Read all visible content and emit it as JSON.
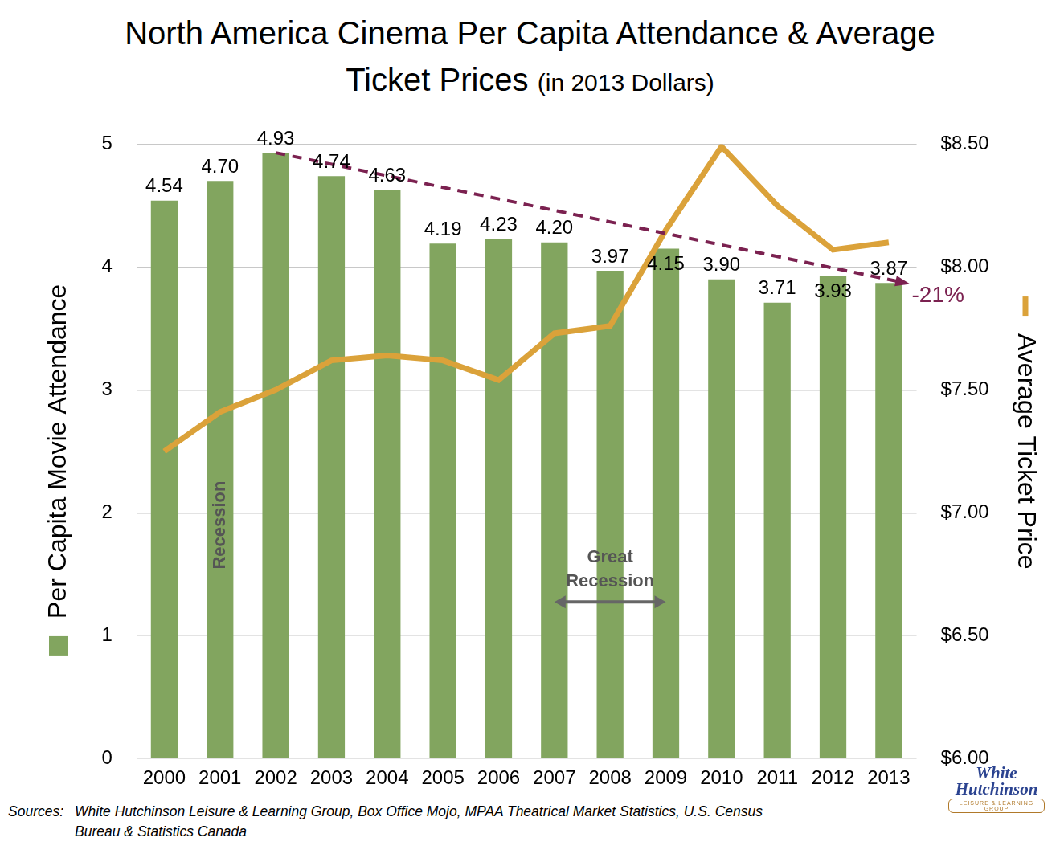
{
  "chart_data": {
    "type": "bar",
    "title": "North America Cinema Per Capita Attendance & Average Ticket Prices",
    "subtitle": "(in 2013 Dollars)",
    "categories": [
      "2000",
      "2001",
      "2002",
      "2003",
      "2004",
      "2005",
      "2006",
      "2007",
      "2008",
      "2009",
      "2010",
      "2011",
      "2012",
      "2013"
    ],
    "series": [
      {
        "type": "bar",
        "color": "#82a55f",
        "axis": "y",
        "values": [
          4.54,
          4.7,
          4.93,
          4.74,
          4.63,
          4.19,
          4.23,
          4.2,
          3.97,
          4.15,
          3.9,
          3.71,
          3.93,
          3.87
        ],
        "value_labels": [
          "4.54",
          "4.70",
          "4.93",
          "4.74",
          "4.63",
          "4.19",
          "4.23",
          "4.20",
          "3.97",
          "4.15",
          "3.90",
          "3.71",
          "3.93",
          "3.87"
        ],
        "data_labels": true
      },
      {
        "type": "line",
        "color": "#dba23a",
        "axis": "y2",
        "marker": "none",
        "line_style": "solid",
        "values": [
          7.25,
          7.41,
          7.5,
          7.62,
          7.64,
          7.62,
          7.54,
          7.73,
          7.76,
          8.15,
          8.49,
          8.25,
          8.07,
          8.1
        ]
      }
    ],
    "y_label": "Per Capita Movie Attendance",
    "y2_label": "Average Ticket Price",
    "ylim": [
      0,
      5
    ],
    "yticks": [
      0,
      1,
      2,
      3,
      4,
      5
    ],
    "y2lim": [
      6,
      8.5
    ],
    "y2ticks": [
      {
        "value": 6,
        "label": "$6.00"
      },
      {
        "value": 6.5,
        "label": "$6.50"
      },
      {
        "value": 7,
        "label": "$7.00"
      },
      {
        "value": 7.5,
        "label": "$7.50"
      },
      {
        "value": 8,
        "label": "$8.00"
      },
      {
        "value": 8.5,
        "label": "$8.50"
      }
    ],
    "grid": true,
    "annotations": [
      {
        "type": "trend",
        "text": "-21%",
        "color": "#7b2150",
        "from": {
          "x": "2002",
          "y": 4.93
        },
        "to": {
          "x": "2013",
          "y": 3.87
        }
      },
      {
        "type": "label",
        "text": "Recession",
        "x": "2001"
      },
      {
        "type": "range",
        "text": "Great Recession",
        "from": "2007",
        "to": "2009"
      }
    ],
    "source_label": "Sources:",
    "source": "White Hutchinson Leisure & Learning Group, Box Office Mojo, MPAA Theatrical Market Statistics, U.S. Census Bureau & Statistics Canada",
    "logo": {
      "lines": [
        "White",
        "Hutchinson"
      ],
      "tagline": "LEISURE & LEARNING GROUP"
    }
  }
}
